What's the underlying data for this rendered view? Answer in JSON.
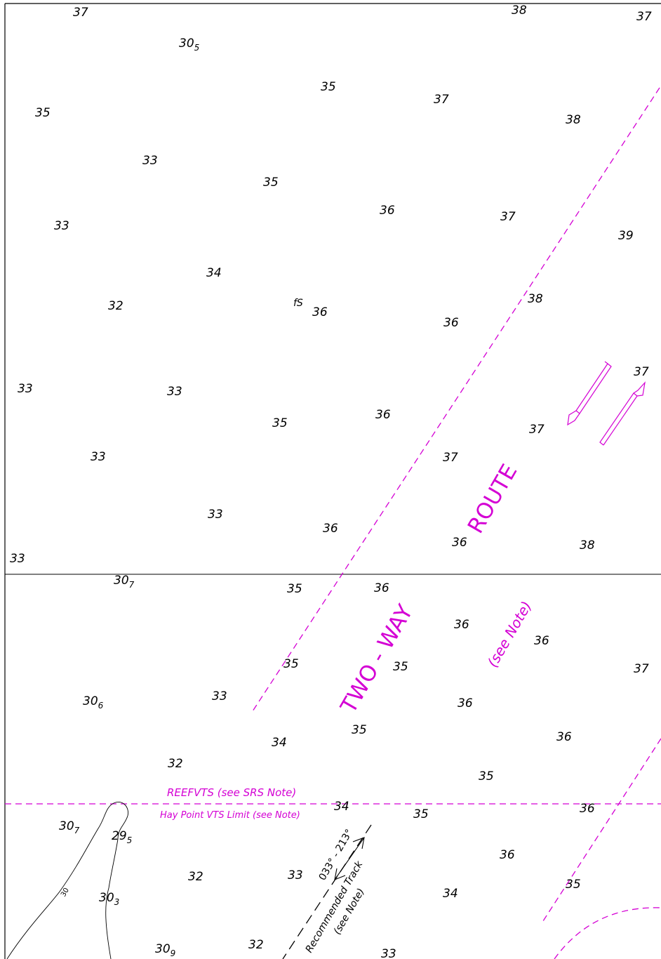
{
  "soundings": [
    {
      "v": "37"
    },
    {
      "v": "38"
    },
    {
      "v": "37"
    },
    {
      "v": "30",
      "s": "5"
    },
    {
      "v": "35"
    },
    {
      "v": "37"
    },
    {
      "v": "35"
    },
    {
      "v": "38"
    },
    {
      "v": "33"
    },
    {
      "v": "35"
    },
    {
      "v": "36"
    },
    {
      "v": "37"
    },
    {
      "v": "33"
    },
    {
      "v": "39"
    },
    {
      "v": "34"
    },
    {
      "v": "38"
    },
    {
      "v": "32"
    },
    {
      "v": "36"
    },
    {
      "v": "36"
    },
    {
      "v": "33"
    },
    {
      "v": "33"
    },
    {
      "v": "37"
    },
    {
      "v": "35"
    },
    {
      "v": "36"
    },
    {
      "v": "37"
    },
    {
      "v": "33"
    },
    {
      "v": "37"
    },
    {
      "v": "33"
    },
    {
      "v": "36"
    },
    {
      "v": "36"
    },
    {
      "v": "38"
    },
    {
      "v": "33"
    },
    {
      "v": "30",
      "s": "7"
    },
    {
      "v": "35"
    },
    {
      "v": "36"
    },
    {
      "v": "36"
    },
    {
      "v": "36"
    },
    {
      "v": "35"
    },
    {
      "v": "35"
    },
    {
      "v": "37"
    },
    {
      "v": "30",
      "s": "6"
    },
    {
      "v": "33"
    },
    {
      "v": "36"
    },
    {
      "v": "34"
    },
    {
      "v": "35"
    },
    {
      "v": "36"
    },
    {
      "v": "32"
    },
    {
      "v": "35"
    },
    {
      "v": "34"
    },
    {
      "v": "35"
    },
    {
      "v": "36"
    },
    {
      "v": "30",
      "s": "7"
    },
    {
      "v": "29",
      "s": "5"
    },
    {
      "v": "36"
    },
    {
      "v": "32"
    },
    {
      "v": "33"
    },
    {
      "v": "30",
      "s": "3"
    },
    {
      "v": "34"
    },
    {
      "v": "35"
    },
    {
      "v": "30",
      "s": "9"
    },
    {
      "v": "32"
    },
    {
      "v": "33"
    }
  ],
  "seabed_label": "fS",
  "route_label_1": "ROUTE",
  "route_label_2": "TWO - WAY",
  "route_note": "(see Note)",
  "reefvts_label": "REEFVTS (see SRS Note)",
  "vts_limit_label": "Hay Point VTS Limit (see Note)",
  "track_bearing": "033° - 213°",
  "track_label": "Recommended Track",
  "track_note": "(see Note)",
  "contour_label": "30",
  "colors": {
    "magenta": "#d400d4",
    "ink": "#000000"
  }
}
